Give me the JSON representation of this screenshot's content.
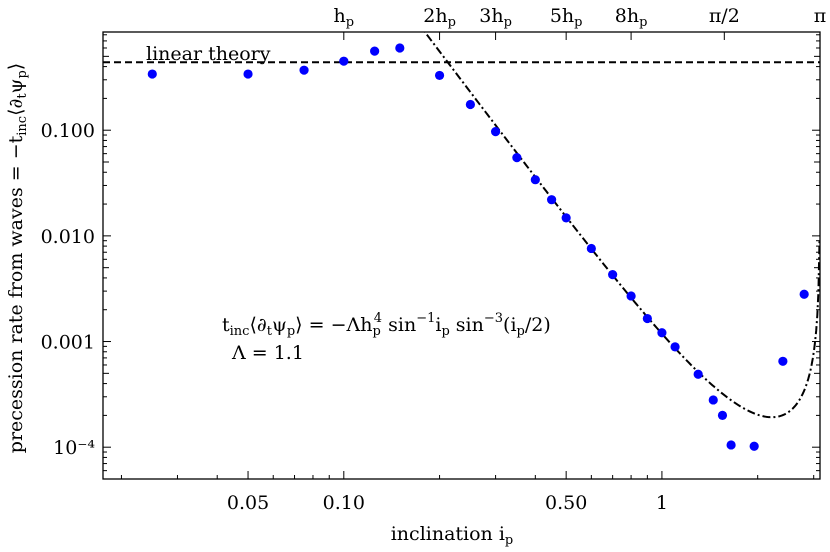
{
  "chart_data": {
    "type": "scatter",
    "xlabel": "inclination i_p",
    "ylabel": "precession rate from waves = −t_inc⟨∂_tψ_p⟩",
    "xscale": "log",
    "yscale": "log",
    "xlim": [
      0.0175,
      3.14
    ],
    "ylim": [
      5e-05,
      0.85
    ],
    "x_ticks": [
      {
        "value": 0.05,
        "label": "0.05"
      },
      {
        "value": 0.1,
        "label": "0.10"
      },
      {
        "value": 0.5,
        "label": "0.50"
      },
      {
        "value": 1,
        "label": "1"
      }
    ],
    "y_ticks": [
      {
        "value": 0.1,
        "label": "0.100"
      },
      {
        "value": 0.01,
        "label": "0.010"
      },
      {
        "value": 0.001,
        "label": "0.001"
      },
      {
        "value": 0.0001,
        "label": "10⁻⁴"
      }
    ],
    "top_ticks": [
      {
        "value": 0.1,
        "label": "h_p"
      },
      {
        "value": 0.2,
        "label": "2h_p"
      },
      {
        "value": 0.3,
        "label": "3h_p"
      },
      {
        "value": 0.5,
        "label": "5h_p"
      },
      {
        "value": 0.8,
        "label": "8h_p"
      },
      {
        "value": 1.5708,
        "label": "π/2"
      },
      {
        "value": 3.1416,
        "label": "π"
      }
    ],
    "series": [
      {
        "style": "points",
        "color": "#0000ff",
        "points": [
          [
            0.025,
            0.34
          ],
          [
            0.05,
            0.34
          ],
          [
            0.075,
            0.37
          ],
          [
            0.1,
            0.45
          ],
          [
            0.125,
            0.56
          ],
          [
            0.15,
            0.6
          ],
          [
            0.2,
            0.33
          ],
          [
            0.25,
            0.175
          ],
          [
            0.3,
            0.097
          ],
          [
            0.35,
            0.055
          ],
          [
            0.4,
            0.034
          ],
          [
            0.45,
            0.022
          ],
          [
            0.5,
            0.0148
          ],
          [
            0.6,
            0.0076
          ],
          [
            0.7,
            0.0043
          ],
          [
            0.8,
            0.0027
          ],
          [
            0.9,
            0.00165
          ],
          [
            1.0,
            0.00121
          ],
          [
            1.1,
            0.00089
          ],
          [
            1.3,
            0.00049
          ],
          [
            1.45,
            0.00028
          ],
          [
            1.55,
            0.0002
          ],
          [
            1.65,
            0.000105
          ],
          [
            1.95,
            0.000102
          ],
          [
            2.4,
            0.00065
          ],
          [
            2.8,
            0.0028
          ]
        ]
      },
      {
        "name": "linear theory",
        "style": "dashed",
        "constant": 0.44
      },
      {
        "style": "dash-dot",
        "formula": "Λ h_p^4 sin^-1(i_p) sin^-3(i_p/2)",
        "params": {
          "Lambda": 1.1,
          "h_p": 0.1
        }
      }
    ],
    "annotations": [
      {
        "text": "linear theory"
      },
      {
        "text": "t_inc⟨∂_tψ_p⟩ = −Λh_p⁴ sin⁻¹i_p sin⁻³(i_p/2)"
      },
      {
        "text": "Λ = 1.1"
      }
    ]
  }
}
